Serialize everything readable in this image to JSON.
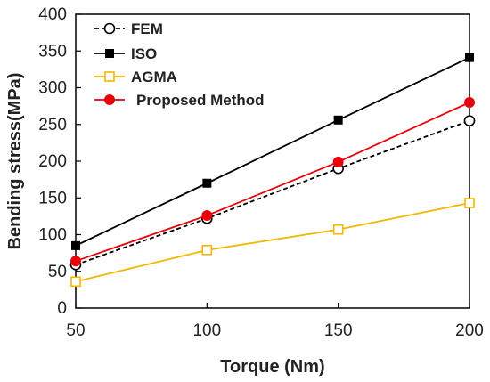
{
  "chart_data": {
    "type": "line",
    "xlabel": "Torque (Nm)",
    "ylabel": "Bending stress(MPa)",
    "x": [
      50,
      100,
      150,
      200
    ],
    "xlim": [
      50,
      200
    ],
    "ylim": [
      0,
      400
    ],
    "xticks": [
      "50",
      "100",
      "150",
      "200"
    ],
    "yticks": [
      "0",
      "50",
      "100",
      "150",
      "200",
      "250",
      "300",
      "350",
      "400"
    ],
    "grid": false,
    "legend_position": "top-left",
    "series": [
      {
        "name": "FEM",
        "values": [
          59,
          122,
          190,
          255
        ],
        "color": "#000000",
        "marker": "open-circle",
        "line_style": "dashed"
      },
      {
        "name": "ISO",
        "values": [
          85,
          170,
          256,
          341
        ],
        "color": "#000000",
        "marker": "filled-square",
        "line_style": "solid"
      },
      {
        "name": "AGMA",
        "values": [
          36,
          79,
          107,
          143
        ],
        "color": "#f2b800",
        "marker": "open-square",
        "line_style": "solid"
      },
      {
        "name": "Proposed Method",
        "values": [
          64,
          126,
          199,
          280
        ],
        "color": "#e8000b",
        "marker": "filled-circle",
        "line_style": "solid"
      }
    ]
  }
}
